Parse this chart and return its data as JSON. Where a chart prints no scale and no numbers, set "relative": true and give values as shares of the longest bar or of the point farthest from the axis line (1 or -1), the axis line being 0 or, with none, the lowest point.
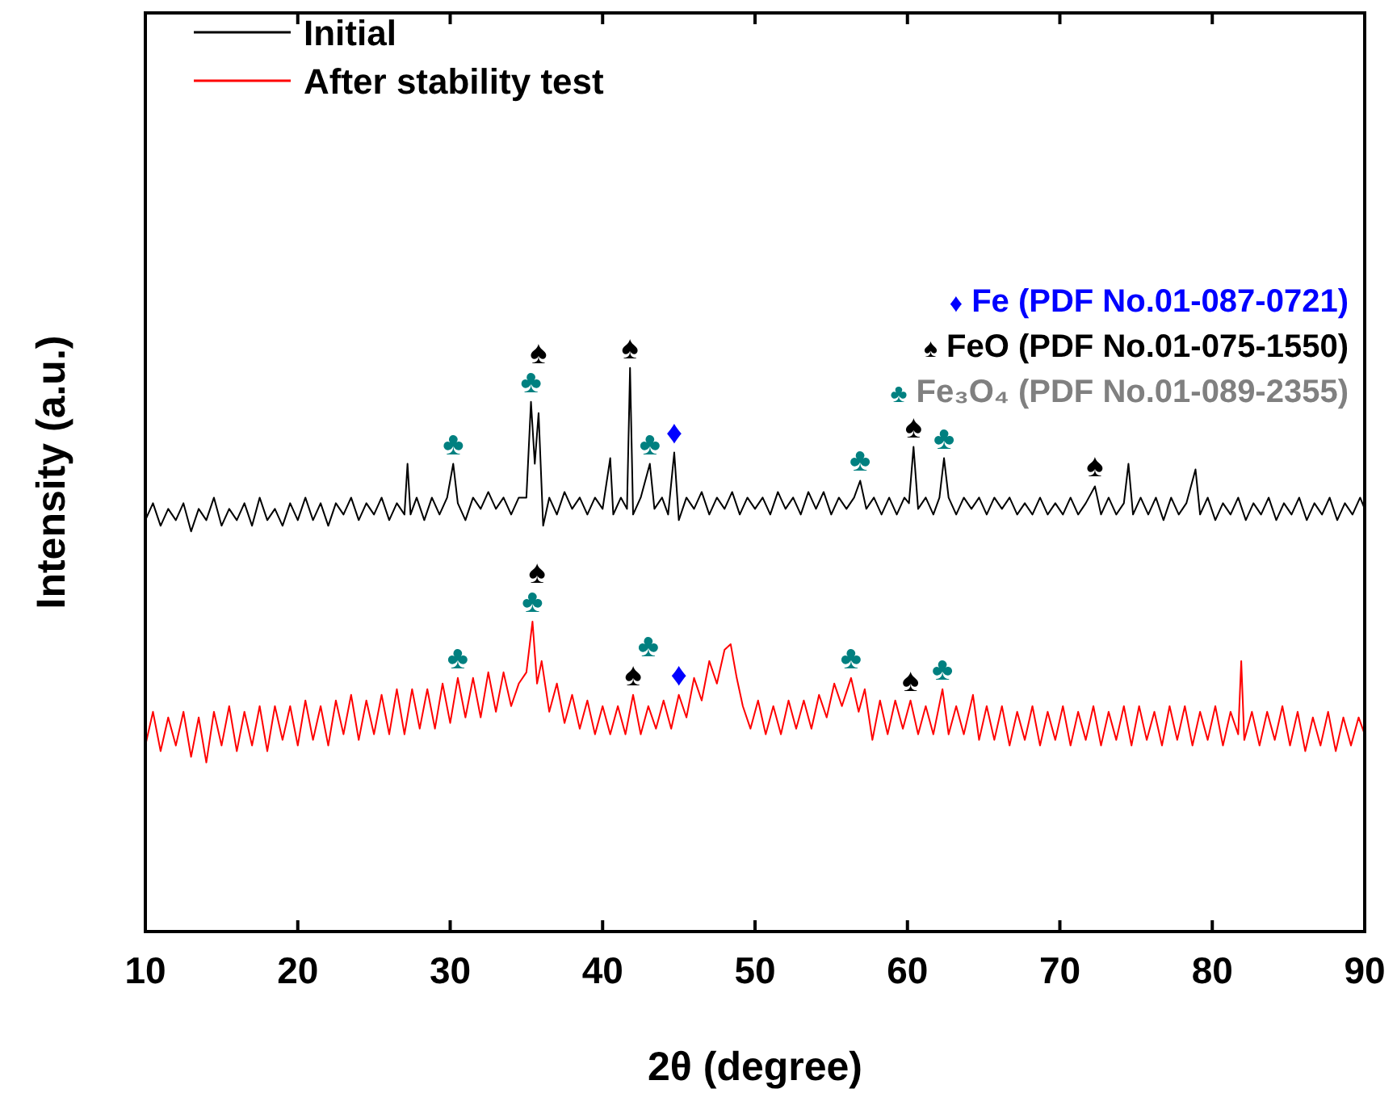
{
  "chart_data": {
    "type": "line",
    "relative": true,
    "xlabel": "2θ (degree)",
    "ylabel": "Intensity (a.u.)",
    "xlim": [
      10,
      90
    ],
    "xticks": [
      10,
      20,
      30,
      40,
      50,
      60,
      70,
      80,
      90
    ],
    "legend": "top left",
    "grid": false,
    "series": [
      {
        "name": "Initial",
        "color": "#000000",
        "x": [
          10,
          10.5,
          11,
          11.5,
          12,
          12.5,
          13,
          13.5,
          14,
          14.5,
          15,
          15.5,
          16,
          16.5,
          17,
          17.5,
          18,
          18.5,
          19,
          19.5,
          20,
          20.5,
          21,
          21.5,
          22,
          22.5,
          23,
          23.5,
          24,
          24.5,
          25,
          25.5,
          26,
          26.5,
          27,
          27.2,
          27.4,
          27.8,
          28.3,
          28.8,
          29.3,
          29.8,
          30.2,
          30.5,
          31,
          31.5,
          32,
          32.5,
          33,
          33.5,
          34,
          34.5,
          35,
          35.3,
          35.55,
          35.8,
          36.1,
          36.5,
          37,
          37.5,
          38,
          38.5,
          39,
          39.5,
          40,
          40.5,
          40.7,
          41.2,
          41.6,
          41.8,
          42,
          42.5,
          43.1,
          43.4,
          43.9,
          44.3,
          44.7,
          45,
          45.5,
          46,
          46.5,
          47,
          47.5,
          48,
          48.5,
          49,
          49.5,
          50,
          50.5,
          51,
          51.5,
          52,
          52.5,
          53,
          53.5,
          54,
          54.5,
          55,
          55.5,
          56,
          56.5,
          56.9,
          57.3,
          57.8,
          58.3,
          58.8,
          59.3,
          59.8,
          60.1,
          60.4,
          60.7,
          61.2,
          61.7,
          62.1,
          62.4,
          62.7,
          63.2,
          63.7,
          64.2,
          64.7,
          65.2,
          65.7,
          66.2,
          66.7,
          67.2,
          67.7,
          68.2,
          68.7,
          69.2,
          69.7,
          70.2,
          70.7,
          71.2,
          71.7,
          72.3,
          72.7,
          73.2,
          73.7,
          74.2,
          74.5,
          74.8,
          75.3,
          75.8,
          76.3,
          76.8,
          77.3,
          77.8,
          78.3,
          78.9,
          79.2,
          79.7,
          80.2,
          80.7,
          81.2,
          81.7,
          82.2,
          82.7,
          83.2,
          83.7,
          84.2,
          84.7,
          85.2,
          85.7,
          86.2,
          86.7,
          87.2,
          87.7,
          88.2,
          88.7,
          89.2,
          89.7,
          90
        ],
        "values": [
          0.73,
          0.76,
          0.72,
          0.75,
          0.73,
          0.76,
          0.71,
          0.75,
          0.73,
          0.77,
          0.72,
          0.75,
          0.73,
          0.76,
          0.72,
          0.77,
          0.73,
          0.75,
          0.72,
          0.76,
          0.73,
          0.77,
          0.73,
          0.76,
          0.72,
          0.76,
          0.74,
          0.77,
          0.73,
          0.76,
          0.74,
          0.77,
          0.73,
          0.76,
          0.74,
          0.83,
          0.74,
          0.77,
          0.73,
          0.77,
          0.74,
          0.77,
          0.83,
          0.76,
          0.73,
          0.77,
          0.75,
          0.78,
          0.75,
          0.77,
          0.74,
          0.77,
          0.77,
          0.94,
          0.83,
          0.92,
          0.72,
          0.77,
          0.74,
          0.78,
          0.75,
          0.77,
          0.74,
          0.77,
          0.75,
          0.84,
          0.74,
          0.77,
          0.75,
          1,
          0.74,
          0.77,
          0.83,
          0.75,
          0.77,
          0.74,
          0.85,
          0.73,
          0.77,
          0.75,
          0.78,
          0.74,
          0.77,
          0.75,
          0.78,
          0.74,
          0.77,
          0.75,
          0.77,
          0.74,
          0.78,
          0.75,
          0.77,
          0.74,
          0.78,
          0.75,
          0.78,
          0.74,
          0.77,
          0.75,
          0.77,
          0.8,
          0.75,
          0.77,
          0.74,
          0.77,
          0.74,
          0.77,
          0.76,
          0.86,
          0.75,
          0.77,
          0.74,
          0.77,
          0.84,
          0.77,
          0.74,
          0.77,
          0.75,
          0.77,
          0.74,
          0.77,
          0.75,
          0.77,
          0.74,
          0.76,
          0.74,
          0.77,
          0.74,
          0.76,
          0.74,
          0.77,
          0.74,
          0.76,
          0.79,
          0.74,
          0.77,
          0.74,
          0.76,
          0.83,
          0.74,
          0.77,
          0.74,
          0.77,
          0.73,
          0.77,
          0.74,
          0.76,
          0.82,
          0.74,
          0.77,
          0.73,
          0.76,
          0.74,
          0.77,
          0.73,
          0.76,
          0.74,
          0.77,
          0.73,
          0.76,
          0.74,
          0.77,
          0.73,
          0.76,
          0.74,
          0.77,
          0.73,
          0.76,
          0.74,
          0.77,
          0.75
        ]
      },
      {
        "name": "After stability test",
        "color": "#ff0000",
        "x": [
          10,
          10.5,
          11,
          11.5,
          12,
          12.5,
          13,
          13.5,
          14,
          14.5,
          15,
          15.5,
          16,
          16.5,
          17,
          17.5,
          18,
          18.5,
          19,
          19.5,
          20,
          20.5,
          21,
          21.5,
          22,
          22.5,
          23,
          23.5,
          24,
          24.5,
          25,
          25.5,
          26,
          26.5,
          27,
          27.5,
          28,
          28.5,
          29,
          29.5,
          30,
          30.5,
          31,
          31.5,
          32,
          32.5,
          33,
          33.5,
          34,
          34.5,
          35,
          35.4,
          35.7,
          36,
          36.5,
          37,
          37.5,
          38,
          38.5,
          39,
          39.5,
          40,
          40.5,
          41,
          41.5,
          42,
          42.5,
          43,
          43.5,
          44,
          44.5,
          45,
          45.5,
          46,
          46.5,
          47,
          47.5,
          48,
          48.4,
          48.8,
          49.2,
          49.7,
          50.2,
          50.7,
          51.2,
          51.7,
          52.2,
          52.7,
          53.2,
          53.7,
          54.2,
          54.7,
          55.2,
          55.7,
          56.3,
          56.8,
          57.2,
          57.7,
          58.2,
          58.7,
          59.2,
          59.7,
          60.2,
          60.7,
          61.2,
          61.7,
          62.3,
          62.7,
          63.2,
          63.7,
          64.3,
          64.7,
          65.2,
          65.7,
          66.2,
          66.7,
          67.2,
          67.7,
          68.2,
          68.7,
          69.2,
          69.7,
          70.2,
          70.7,
          71.2,
          71.7,
          72.2,
          72.7,
          73.2,
          73.7,
          74.2,
          74.7,
          75.2,
          75.7,
          76.2,
          76.7,
          77.2,
          77.7,
          78.2,
          78.7,
          79.2,
          79.7,
          80.2,
          80.7,
          81.2,
          81.7,
          81.9,
          82.1,
          82.6,
          83.1,
          83.6,
          84.1,
          84.6,
          85.1,
          85.6,
          86.1,
          86.6,
          87.1,
          87.6,
          88.1,
          88.6,
          89.1,
          89.6,
          90
        ],
        "values": [
          0.33,
          0.39,
          0.32,
          0.38,
          0.33,
          0.39,
          0.31,
          0.38,
          0.3,
          0.39,
          0.33,
          0.4,
          0.32,
          0.39,
          0.33,
          0.4,
          0.32,
          0.4,
          0.34,
          0.4,
          0.33,
          0.41,
          0.34,
          0.4,
          0.33,
          0.41,
          0.35,
          0.42,
          0.34,
          0.41,
          0.35,
          0.42,
          0.35,
          0.43,
          0.35,
          0.43,
          0.36,
          0.43,
          0.36,
          0.44,
          0.37,
          0.45,
          0.38,
          0.45,
          0.38,
          0.46,
          0.39,
          0.46,
          0.4,
          0.44,
          0.46,
          0.55,
          0.44,
          0.48,
          0.39,
          0.44,
          0.37,
          0.42,
          0.36,
          0.41,
          0.35,
          0.4,
          0.35,
          0.4,
          0.35,
          0.42,
          0.35,
          0.4,
          0.36,
          0.41,
          0.36,
          0.42,
          0.38,
          0.45,
          0.41,
          0.48,
          0.44,
          0.5,
          0.51,
          0.45,
          0.4,
          0.36,
          0.41,
          0.35,
          0.4,
          0.35,
          0.41,
          0.36,
          0.41,
          0.36,
          0.42,
          0.38,
          0.44,
          0.4,
          0.45,
          0.39,
          0.43,
          0.34,
          0.41,
          0.35,
          0.41,
          0.36,
          0.41,
          0.35,
          0.4,
          0.35,
          0.43,
          0.35,
          0.4,
          0.35,
          0.42,
          0.34,
          0.4,
          0.34,
          0.4,
          0.33,
          0.39,
          0.34,
          0.4,
          0.33,
          0.39,
          0.34,
          0.4,
          0.33,
          0.39,
          0.34,
          0.4,
          0.33,
          0.39,
          0.34,
          0.4,
          0.33,
          0.4,
          0.34,
          0.39,
          0.33,
          0.4,
          0.34,
          0.4,
          0.33,
          0.39,
          0.34,
          0.4,
          0.33,
          0.39,
          0.35,
          0.48,
          0.34,
          0.39,
          0.33,
          0.39,
          0.34,
          0.4,
          0.33,
          0.39,
          0.32,
          0.38,
          0.33,
          0.39,
          0.32,
          0.38,
          0.33,
          0.38,
          0.35
        ]
      }
    ],
    "annotations": [
      "♦ Fe (PDF No.01-087-0721)",
      "♠ FeO (PDF No.01-075-1550)",
      "♣ Fe₃O₄ (PDF No.01-089-2355)",
      {
        "text": "♣",
        "x": 30.2,
        "y": 0.83
      },
      {
        "text": "♣",
        "x": 35.3,
        "y": 0.94
      },
      {
        "text": "♠",
        "x": 35.8,
        "y": 0.92
      },
      {
        "text": "♠",
        "x": 41.8,
        "y": 1
      },
      {
        "text": "♣",
        "x": 43.1,
        "y": 0.83
      },
      {
        "text": "♦",
        "x": 44.7,
        "y": 0.85
      },
      {
        "text": "♣",
        "x": 56.9,
        "y": 0.8
      },
      {
        "text": "♠",
        "x": 60.4,
        "y": 0.86
      },
      {
        "text": "♣",
        "x": 62.4,
        "y": 0.84
      },
      {
        "text": "♠",
        "x": 72.3,
        "y": 0.79
      },
      {
        "text": "♣",
        "x": 30.5,
        "y": 0.45
      },
      {
        "text": "♣",
        "x": 35.4,
        "y": 0.55
      },
      {
        "text": "♠",
        "x": 35.7,
        "y": 0.44
      },
      {
        "text": "♠",
        "x": 42,
        "y": 0.42
      },
      {
        "text": "♣",
        "x": 43,
        "y": 0.4
      },
      {
        "text": "♦",
        "x": 45,
        "y": 0.42
      },
      {
        "text": "♣",
        "x": 56.3,
        "y": 0.45
      },
      {
        "text": "♠",
        "x": 60.2,
        "y": 0.41
      },
      {
        "text": "♣",
        "x": 62.3,
        "y": 0.43
      }
    ]
  }
}
